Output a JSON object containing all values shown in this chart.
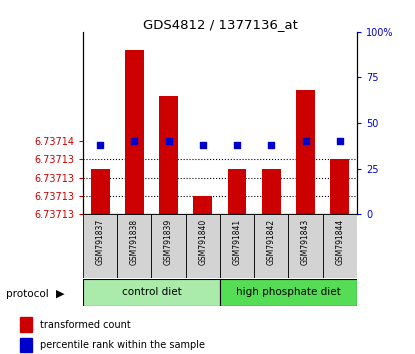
{
  "title": "GDS4812 / 1377136_at",
  "samples": [
    "GSM791837",
    "GSM791838",
    "GSM791839",
    "GSM791840",
    "GSM791841",
    "GSM791842",
    "GSM791843",
    "GSM791844"
  ],
  "red_values": [
    6.7371325,
    6.737139,
    6.7371365,
    6.737131,
    6.7371325,
    6.7371325,
    6.7371368,
    6.737133
  ],
  "blue_values": [
    38,
    40,
    40,
    38,
    38,
    38,
    40,
    40
  ],
  "ymin": 6.73713,
  "ymax": 6.73714,
  "ytick_values": [
    6.73713,
    6.737131,
    6.737132,
    6.737133,
    6.737134
  ],
  "ytick_labels": [
    "6.73713",
    "6.73713",
    "6.73713",
    "6.73713",
    "6.73714"
  ],
  "right_ticks": [
    0,
    25,
    50,
    75,
    100
  ],
  "right_tick_labels": [
    "0",
    "25",
    "50",
    "75",
    "100%"
  ],
  "left_color": "#CC0000",
  "right_color": "#0000CC",
  "bar_color": "#CC0000",
  "dot_color": "#0000CC",
  "grid_ticks": [
    6.737131,
    6.737132,
    6.737133
  ],
  "control_color": "#AAEAAA",
  "hphosphate_color": "#55DD55",
  "label_bg": "#D3D3D3"
}
